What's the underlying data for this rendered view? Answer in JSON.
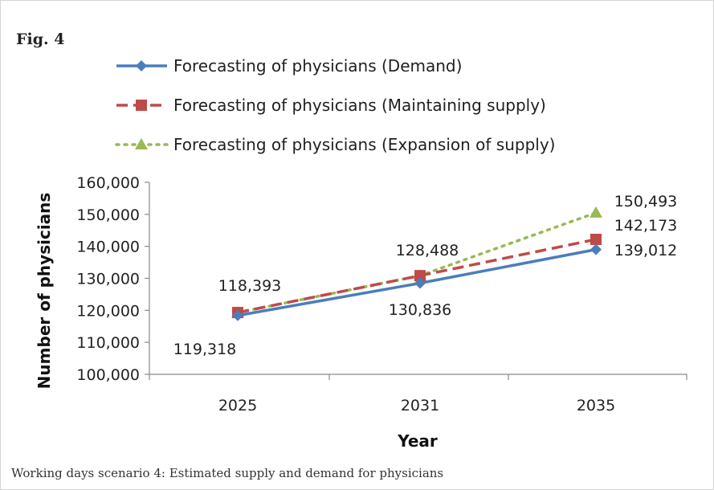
{
  "figure": {
    "label": "Fig. 4",
    "caption": "Working days scenario 4: Estimated supply and demand for physicians"
  },
  "chart_data": {
    "type": "line",
    "categories": [
      "2025",
      "2031",
      "2035"
    ],
    "ylim": [
      100000,
      160000
    ],
    "yticks": [
      100000,
      110000,
      120000,
      130000,
      140000,
      150000,
      160000
    ],
    "xlabel": "Year",
    "ylabel": "Number of physicians",
    "grid": false,
    "legend_position": "top",
    "series": [
      {
        "name": "Forecasting of physicians (Demand)",
        "values": [
          118393,
          128488,
          139012
        ],
        "color": "#4a7ebb",
        "marker": "diamond",
        "dash": "solid"
      },
      {
        "name": "Forecasting of physicians (Maintaining supply)",
        "values": [
          119318,
          130836,
          142173
        ],
        "color": "#be4b48",
        "marker": "square",
        "dash": "dashed"
      },
      {
        "name": "Forecasting of physicians (Expansion of supply)",
        "values": [
          119318,
          130836,
          150493
        ],
        "color": "#98b954",
        "marker": "triangle",
        "dash": "dotted"
      }
    ],
    "data_labels": [
      "118,393",
      "119,318",
      "128,488",
      "130,836",
      "150,493",
      "142,173",
      "139,012"
    ]
  }
}
